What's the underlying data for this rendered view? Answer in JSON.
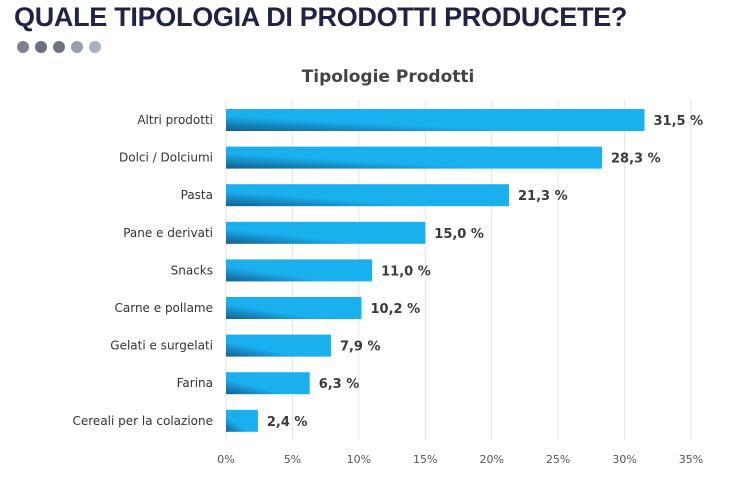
{
  "heading": "QUALE TIPOLOGIA DI PRODOTTI PRODUCETE?",
  "dots": [
    "#7d8190",
    "#6b6f7e",
    "#70747f",
    "#9a9fb0",
    "#aab0c4"
  ],
  "chart_data": {
    "type": "bar",
    "orientation": "horizontal",
    "title": "Tipologie Prodotti",
    "categories": [
      "Altri prodotti",
      "Dolci / Dolciumi",
      "Pasta",
      "Pane e derivati",
      "Snacks",
      "Carne e pollame",
      "Gelati e surgelati",
      "Farina",
      "Cereali per la colazione"
    ],
    "values": [
      31.5,
      28.3,
      21.3,
      15.0,
      11.0,
      10.2,
      7.9,
      6.3,
      2.4
    ],
    "value_labels": [
      "31,5 %",
      "28,3 %",
      "21,3 %",
      "15,0 %",
      "11,0 %",
      "10,2 %",
      "7,9 %",
      "6,3 %",
      "2,4 %"
    ],
    "xlim": [
      0,
      35
    ],
    "xticks": [
      0,
      5,
      10,
      15,
      20,
      25,
      30,
      35
    ],
    "xtick_labels": [
      "0%",
      "5%",
      "10%",
      "15%",
      "20%",
      "25%",
      "30%",
      "35%"
    ],
    "grid": "vertical",
    "bar_color_light": "#1ab0ee",
    "bar_color_dark": "#145f8f",
    "xlabel": "",
    "ylabel": ""
  }
}
